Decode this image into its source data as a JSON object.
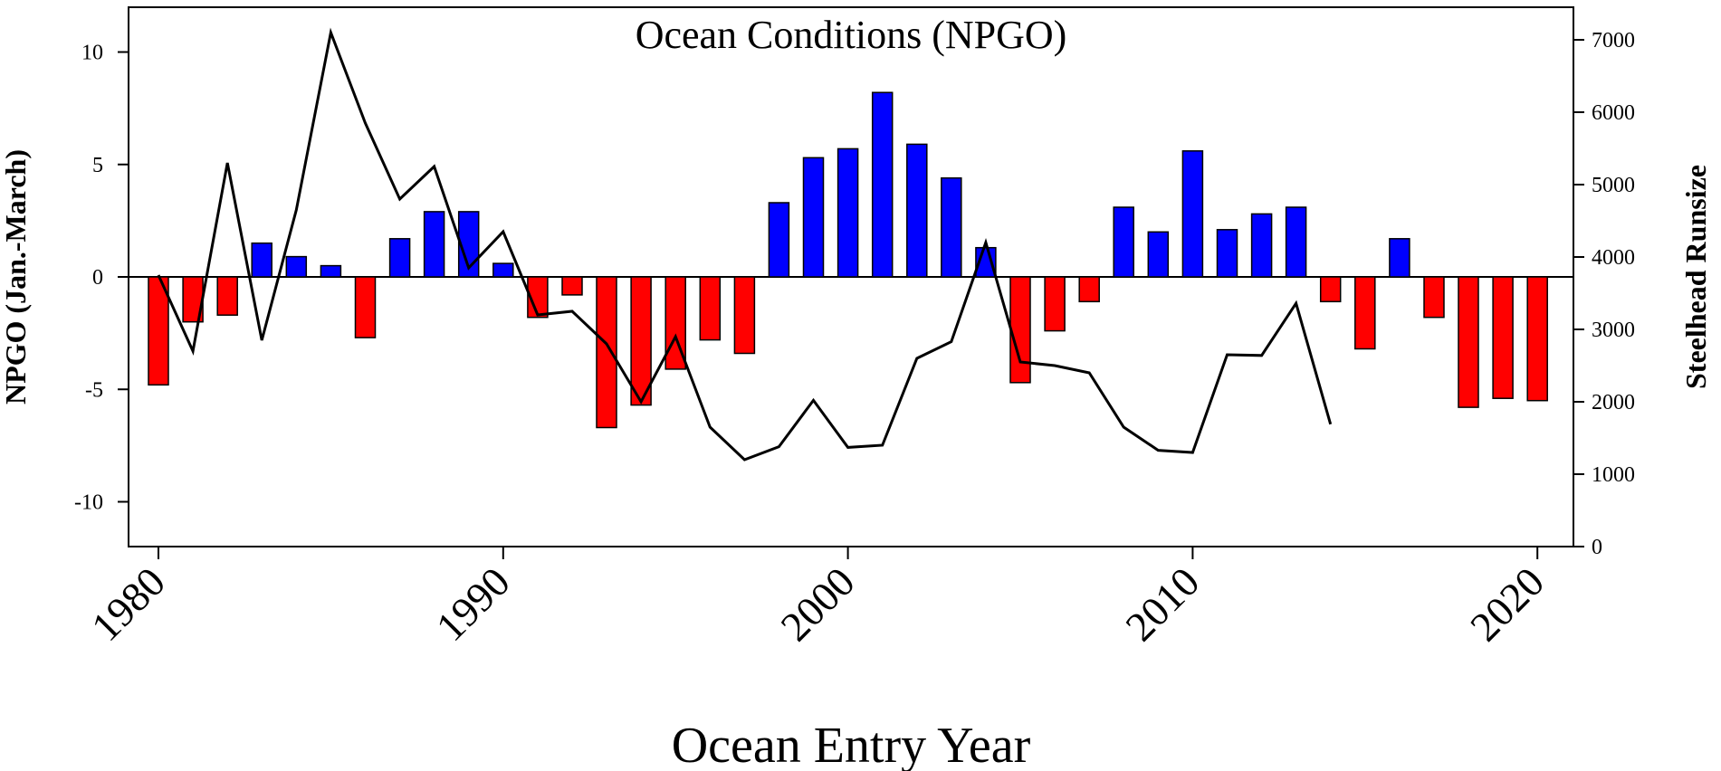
{
  "chart_data": {
    "type": "bar",
    "title": "Ocean Conditions (NPGO)",
    "xlabel": "Ocean Entry Year",
    "ylabel": "NPGO (Jan.-March)",
    "y2label": "Steelhead Runsize",
    "xlim": [
      1979,
      2021
    ],
    "ylim": [
      -12,
      12
    ],
    "y2lim": [
      0,
      7500
    ],
    "x_ticks": [
      "1980",
      "1990",
      "2000",
      "2010",
      "2020"
    ],
    "y_ticks": [
      "-10",
      "-5",
      "0",
      "5",
      "10"
    ],
    "y2_ticks": [
      "0",
      "1000",
      "2000",
      "3000",
      "4000",
      "5000",
      "6000",
      "7000"
    ],
    "grid": false,
    "colors": {
      "positive": "#0000ff",
      "negative": "#ff0000",
      "line": "#000000"
    },
    "series": [
      {
        "type": "bar",
        "axis": "left",
        "x": [
          1980,
          1981,
          1982,
          1983,
          1984,
          1985,
          1986,
          1987,
          1988,
          1989,
          1990,
          1991,
          1992,
          1993,
          1994,
          1995,
          1996,
          1997,
          1998,
          1999,
          2000,
          2001,
          2002,
          2003,
          2004,
          2005,
          2006,
          2007,
          2008,
          2009,
          2010,
          2011,
          2012,
          2013,
          2014,
          2015,
          2016,
          2017,
          2018,
          2019,
          2020
        ],
        "values": [
          -4.8,
          -2.0,
          -1.7,
          1.5,
          0.9,
          0.5,
          -2.7,
          1.7,
          2.9,
          2.9,
          0.6,
          -1.8,
          -0.8,
          -6.7,
          -5.7,
          -4.1,
          -2.8,
          -3.4,
          3.3,
          5.3,
          5.7,
          8.2,
          5.9,
          4.4,
          1.3,
          -4.7,
          -2.4,
          -1.1,
          3.1,
          2.0,
          5.6,
          2.1,
          2.8,
          3.1,
          -1.1,
          -3.2,
          1.7,
          -1.8,
          -5.8,
          -5.4,
          -5.5
        ]
      },
      {
        "type": "line",
        "axis": "right",
        "x": [
          1980,
          1981,
          1982,
          1983,
          1984,
          1985,
          1986,
          1987,
          1988,
          1989,
          1990,
          1991,
          1992,
          1993,
          1994,
          1995,
          1996,
          1997,
          1998,
          1999,
          2000,
          2001,
          2002,
          2003,
          2004,
          2005,
          2006,
          2007,
          2008,
          2009,
          2010,
          2011,
          2012,
          2013,
          2014
        ],
        "values": [
          3750,
          2700,
          5300,
          2850,
          4650,
          7100,
          5850,
          4800,
          5250,
          3850,
          4350,
          3200,
          3250,
          2800,
          2000,
          2900,
          1650,
          1200,
          1380,
          2020,
          1370,
          1400,
          2600,
          2830,
          4200,
          2550,
          2500,
          2400,
          1650,
          1330,
          1300,
          2650,
          2640,
          3360,
          1690
        ]
      }
    ]
  }
}
